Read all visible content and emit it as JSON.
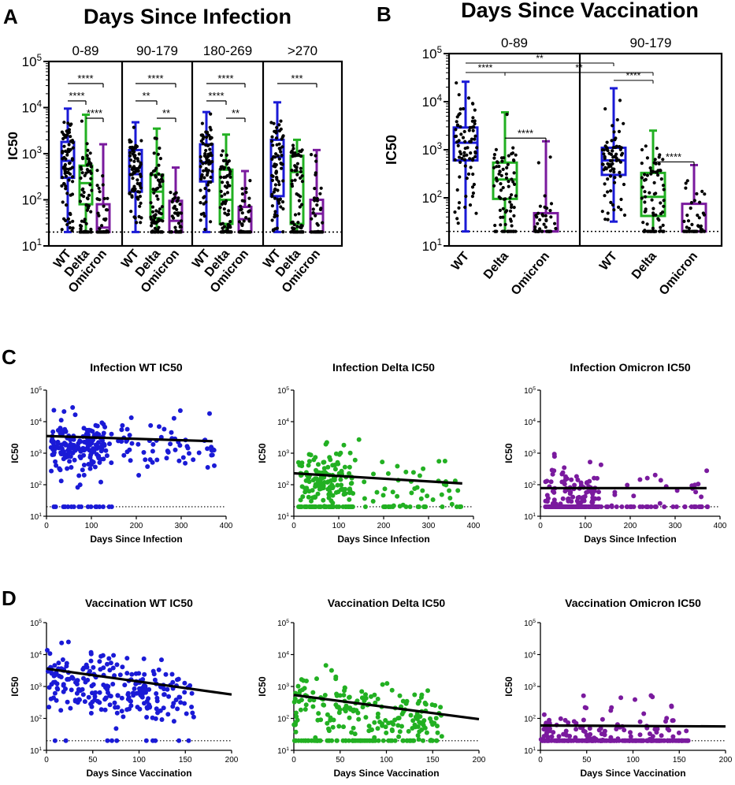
{
  "panels": {
    "A": {
      "letter": "A",
      "title": "Days Since Infection",
      "ylabel": "IC50",
      "detection_limit": 20,
      "ylim_log": [
        10,
        100000
      ],
      "ticks": [
        {
          "base": "10",
          "exp": "1"
        },
        {
          "base": "10",
          "exp": "2"
        },
        {
          "base": "10",
          "exp": "3"
        },
        {
          "base": "10",
          "exp": "4"
        },
        {
          "base": "10",
          "exp": "5"
        }
      ],
      "groups": [
        {
          "label": "0-89",
          "boxes": [
            {
              "variant": "WT",
              "min": 20,
              "q1": 300,
              "median": 700,
              "q3": 1800,
              "max": 9500
            },
            {
              "variant": "Delta",
              "min": 20,
              "q1": 80,
              "median": 230,
              "q3": 550,
              "max": 7000
            },
            {
              "variant": "Omicron",
              "min": 20,
              "q1": 20,
              "median": 25,
              "q3": 80,
              "max": 1600
            }
          ],
          "sig": [
            {
              "from": 0,
              "to": 2,
              "label": "****"
            },
            {
              "from": 0,
              "to": 1,
              "label": "****"
            },
            {
              "from": 1,
              "to": 2,
              "label": "****"
            }
          ]
        },
        {
          "label": "90-179",
          "boxes": [
            {
              "variant": "WT",
              "min": 20,
              "q1": 150,
              "median": 360,
              "q3": 1200,
              "max": 4800
            },
            {
              "variant": "Delta",
              "min": 20,
              "q1": 40,
              "median": 150,
              "q3": 350,
              "max": 3500
            },
            {
              "variant": "Omicron",
              "min": 20,
              "q1": 20,
              "median": 35,
              "q3": 95,
              "max": 500
            }
          ],
          "sig": [
            {
              "from": 0,
              "to": 2,
              "label": "****"
            },
            {
              "from": 0,
              "to": 1,
              "label": "**"
            },
            {
              "from": 1,
              "to": 2,
              "label": "**"
            }
          ]
        },
        {
          "label": "180-269",
          "boxes": [
            {
              "variant": "WT",
              "min": 20,
              "q1": 250,
              "median": 650,
              "q3": 1600,
              "max": 8000
            },
            {
              "variant": "Delta",
              "min": 20,
              "q1": 30,
              "median": 100,
              "q3": 450,
              "max": 2600
            },
            {
              "variant": "Omicron",
              "min": 20,
              "q1": 20,
              "median": 38,
              "q3": 70,
              "max": 420
            }
          ],
          "sig": [
            {
              "from": 0,
              "to": 2,
              "label": "****"
            },
            {
              "from": 0,
              "to": 1,
              "label": "****"
            },
            {
              "from": 1,
              "to": 2,
              "label": "**"
            }
          ]
        },
        {
          "label": ">270",
          "boxes": [
            {
              "variant": "WT",
              "min": 20,
              "q1": 120,
              "median": 850,
              "q3": 2000,
              "max": 13000
            },
            {
              "variant": "Delta",
              "min": 20,
              "q1": 30,
              "median": 400,
              "q3": 900,
              "max": 2000
            },
            {
              "variant": "Omicron",
              "min": 20,
              "q1": 20,
              "median": 50,
              "q3": 100,
              "max": 1200
            }
          ],
          "sig": [
            {
              "from": 0,
              "to": 2,
              "label": "***"
            }
          ]
        }
      ]
    },
    "B": {
      "letter": "B",
      "title": "Days Since Vaccination",
      "ylabel": "IC50",
      "detection_limit": 20,
      "ylim_log": [
        10,
        100000
      ],
      "ticks": [
        {
          "base": "10",
          "exp": "1"
        },
        {
          "base": "10",
          "exp": "2"
        },
        {
          "base": "10",
          "exp": "3"
        },
        {
          "base": "10",
          "exp": "4"
        },
        {
          "base": "10",
          "exp": "5"
        }
      ],
      "groups": [
        {
          "label": "0-89",
          "boxes": [
            {
              "variant": "WT",
              "min": 20,
              "q1": 600,
              "median": 1400,
              "q3": 2900,
              "max": 26000
            },
            {
              "variant": "Delta",
              "min": 20,
              "q1": 95,
              "median": 240,
              "q3": 540,
              "max": 6000
            },
            {
              "variant": "Omicron",
              "min": 20,
              "q1": 20,
              "median": 20,
              "q3": 48,
              "max": 1500
            }
          ],
          "sig": [
            {
              "from": 1,
              "to": 2,
              "label": "****"
            }
          ]
        },
        {
          "label": "90-179",
          "boxes": [
            {
              "variant": "WT",
              "min": 32,
              "q1": 300,
              "median": 600,
              "q3": 1100,
              "max": 19000
            },
            {
              "variant": "Delta",
              "min": 20,
              "q1": 42,
              "median": 105,
              "q3": 330,
              "max": 2500
            },
            {
              "variant": "Omicron",
              "min": 20,
              "q1": 20,
              "median": 20,
              "q3": 75,
              "max": 480
            }
          ],
          "sig": [
            {
              "from": 1,
              "to": 2,
              "label": "****"
            }
          ]
        }
      ],
      "cross_sig": [
        {
          "label": "**",
          "from": "g0-b0",
          "to": "g1-b0"
        },
        {
          "label": "****",
          "from": "g0-b0",
          "to": "g0-b1"
        },
        {
          "label": "**",
          "from": "g0-b1",
          "to": "g1-b1"
        },
        {
          "label": "****",
          "from": "g1-b0",
          "to": "g1-b1"
        }
      ]
    },
    "C": {
      "letter": "C",
      "xlabel": "Days Since Infection",
      "ylabel": "IC50",
      "xlim": [
        0,
        400
      ],
      "xticks": [
        "0",
        "100",
        "200",
        "300",
        "400"
      ],
      "ticks": [
        {
          "base": "10",
          "exp": "1"
        },
        {
          "base": "10",
          "exp": "2"
        },
        {
          "base": "10",
          "exp": "3"
        },
        {
          "base": "10",
          "exp": "4"
        },
        {
          "base": "10",
          "exp": "5"
        }
      ],
      "detection_limit": 20,
      "plots": [
        {
          "title": "Infection WT IC50",
          "variant": "WT",
          "fit": {
            "x0": 0,
            "y0": 3500,
            "x1": 370,
            "y1": 2400
          }
        },
        {
          "title": "Infection Delta IC50",
          "variant": "Delta",
          "fit": {
            "x0": 0,
            "y0": 230,
            "x1": 375,
            "y1": 110
          }
        },
        {
          "title": "Infection Omicron IC50",
          "variant": "Omicron",
          "fit": {
            "x0": 0,
            "y0": 78,
            "x1": 370,
            "y1": 78
          }
        }
      ]
    },
    "D": {
      "letter": "D",
      "xlabel": "Days Since Vaccination",
      "ylabel": "IC50",
      "xlim": [
        0,
        200
      ],
      "xticks": [
        "0",
        "50",
        "100",
        "150",
        "200"
      ],
      "ticks": [
        {
          "base": "10",
          "exp": "1"
        },
        {
          "base": "10",
          "exp": "2"
        },
        {
          "base": "10",
          "exp": "3"
        },
        {
          "base": "10",
          "exp": "4"
        },
        {
          "base": "10",
          "exp": "5"
        }
      ],
      "detection_limit": 20,
      "plots": [
        {
          "title": "Vaccination WT IC50",
          "variant": "WT",
          "fit": {
            "x0": 0,
            "y0": 3600,
            "x1": 200,
            "y1": 560
          }
        },
        {
          "title": "Vaccination Delta IC50",
          "variant": "Delta",
          "fit": {
            "x0": 0,
            "y0": 540,
            "x1": 200,
            "y1": 95
          }
        },
        {
          "title": "Vaccination Omicron IC50",
          "variant": "Omicron",
          "fit": {
            "x0": 0,
            "y0": 60,
            "x1": 200,
            "y1": 56
          }
        }
      ]
    }
  },
  "colors": {
    "WT": "#1a1ad6",
    "Delta": "#22b022",
    "Omicron": "#7a1a9e",
    "points": "#000000",
    "fit": "#000000"
  },
  "chart_data": [
    {
      "type": "box",
      "panel": "A",
      "title": "Days Since Infection",
      "ylabel": "IC50",
      "yscale": "log",
      "ylim": [
        10,
        100000
      ],
      "categories": [
        "0-89",
        "90-179",
        "180-269",
        ">270"
      ],
      "series_names": [
        "WT",
        "Delta",
        "Omicron"
      ],
      "medians": {
        "WT": [
          700,
          360,
          650,
          850
        ],
        "Delta": [
          230,
          150,
          100,
          400
        ],
        "Omicron": [
          25,
          35,
          38,
          50
        ]
      }
    },
    {
      "type": "box",
      "panel": "B",
      "title": "Days Since Vaccination",
      "ylabel": "IC50",
      "yscale": "log",
      "ylim": [
        10,
        100000
      ],
      "categories": [
        "0-89",
        "90-179"
      ],
      "series_names": [
        "WT",
        "Delta",
        "Omicron"
      ],
      "medians": {
        "WT": [
          1400,
          600
        ],
        "Delta": [
          240,
          105
        ],
        "Omicron": [
          20,
          20
        ]
      }
    },
    {
      "type": "scatter",
      "panel": "C",
      "xlabel": "Days Since Infection",
      "ylabel": "IC50",
      "xlim": [
        0,
        400
      ],
      "ylim": [
        10,
        100000
      ],
      "yscale": "log",
      "series": [
        {
          "name": "Infection WT IC50",
          "fit": [
            [
              0,
              3500
            ],
            [
              370,
              2400
            ]
          ]
        },
        {
          "name": "Infection Delta IC50",
          "fit": [
            [
              0,
              230
            ],
            [
              375,
              110
            ]
          ]
        },
        {
          "name": "Infection Omicron IC50",
          "fit": [
            [
              0,
              78
            ],
            [
              370,
              78
            ]
          ]
        }
      ]
    },
    {
      "type": "scatter",
      "panel": "D",
      "xlabel": "Days Since Vaccination",
      "ylabel": "IC50",
      "xlim": [
        0,
        200
      ],
      "ylim": [
        10,
        100000
      ],
      "yscale": "log",
      "series": [
        {
          "name": "Vaccination WT IC50",
          "fit": [
            [
              0,
              3600
            ],
            [
              200,
              560
            ]
          ]
        },
        {
          "name": "Vaccination Delta IC50",
          "fit": [
            [
              0,
              540
            ],
            [
              200,
              95
            ]
          ]
        },
        {
          "name": "Vaccination Omicron IC50",
          "fit": [
            [
              0,
              60
            ],
            [
              200,
              56
            ]
          ]
        }
      ]
    }
  ]
}
